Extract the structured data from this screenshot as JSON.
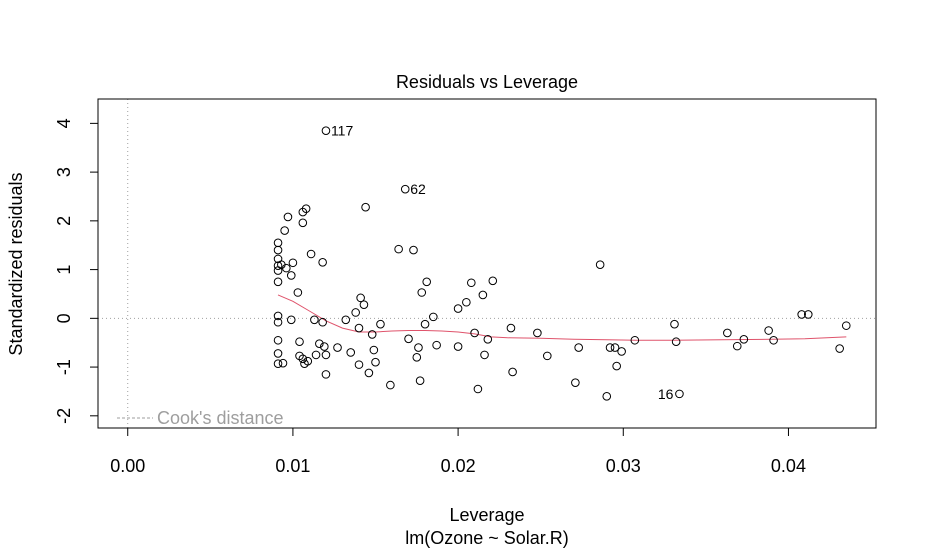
{
  "chart_data": {
    "type": "scatter",
    "title": "Residuals vs Leverage",
    "xlabel": "Leverage",
    "sub_xlabel": "lm(Ozone ~ Solar.R)",
    "ylabel": "Standardized residuals",
    "xlim": [
      -0.0018,
      0.0453
    ],
    "ylim": [
      -2.25,
      4.5
    ],
    "xticks": [
      0.0,
      0.01,
      0.02,
      0.03,
      0.04
    ],
    "xtick_labels": [
      "0.00",
      "0.01",
      "0.02",
      "0.03",
      "0.04"
    ],
    "yticks": [
      -2,
      -1,
      0,
      1,
      2,
      3,
      4
    ],
    "ytick_labels": [
      "-2",
      "-1",
      "0",
      "1",
      "2",
      "3",
      "4"
    ],
    "legend": {
      "label": "Cook's distance",
      "position": "bottom-left"
    },
    "reference_lines": {
      "h": 0,
      "v": 0
    },
    "points": [
      {
        "x": 0.0091,
        "y": 1.55
      },
      {
        "x": 0.0091,
        "y": 1.4
      },
      {
        "x": 0.0091,
        "y": 1.22
      },
      {
        "x": 0.0091,
        "y": 1.08
      },
      {
        "x": 0.0091,
        "y": 0.98
      },
      {
        "x": 0.0091,
        "y": 0.75
      },
      {
        "x": 0.0091,
        "y": 0.05
      },
      {
        "x": 0.0091,
        "y": -0.08
      },
      {
        "x": 0.0091,
        "y": -0.45
      },
      {
        "x": 0.0091,
        "y": -0.72
      },
      {
        "x": 0.0091,
        "y": -0.93
      },
      {
        "x": 0.0093,
        "y": 1.1
      },
      {
        "x": 0.0094,
        "y": -0.92
      },
      {
        "x": 0.0095,
        "y": 1.8
      },
      {
        "x": 0.0097,
        "y": 2.08
      },
      {
        "x": 0.0096,
        "y": 1.03
      },
      {
        "x": 0.0099,
        "y": 0.88
      },
      {
        "x": 0.01,
        "y": 1.14
      },
      {
        "x": 0.0099,
        "y": -0.03
      },
      {
        "x": 0.0103,
        "y": 0.53
      },
      {
        "x": 0.0104,
        "y": -0.77
      },
      {
        "x": 0.0104,
        "y": -0.48
      },
      {
        "x": 0.0106,
        "y": 2.18
      },
      {
        "x": 0.0106,
        "y": 1.96
      },
      {
        "x": 0.0108,
        "y": 2.25
      },
      {
        "x": 0.0106,
        "y": -0.83
      },
      {
        "x": 0.0107,
        "y": -0.93
      },
      {
        "x": 0.0109,
        "y": -0.88
      },
      {
        "x": 0.0111,
        "y": 1.32
      },
      {
        "x": 0.0113,
        "y": -0.03
      },
      {
        "x": 0.0114,
        "y": -0.75
      },
      {
        "x": 0.0116,
        "y": -0.52
      },
      {
        "x": 0.0118,
        "y": -0.08
      },
      {
        "x": 0.0118,
        "y": 1.15
      },
      {
        "x": 0.0119,
        "y": -0.58
      },
      {
        "x": 0.012,
        "y": -0.75
      },
      {
        "x": 0.012,
        "y": -1.15
      },
      {
        "x": 0.012,
        "y": 3.85,
        "label": "117"
      },
      {
        "x": 0.0127,
        "y": -0.6
      },
      {
        "x": 0.0132,
        "y": -0.03
      },
      {
        "x": 0.0135,
        "y": -0.7
      },
      {
        "x": 0.0138,
        "y": 0.12
      },
      {
        "x": 0.014,
        "y": -0.2
      },
      {
        "x": 0.014,
        "y": -0.95
      },
      {
        "x": 0.0141,
        "y": 0.42
      },
      {
        "x": 0.0143,
        "y": 0.28
      },
      {
        "x": 0.0144,
        "y": 2.28
      },
      {
        "x": 0.0146,
        "y": -1.12
      },
      {
        "x": 0.0148,
        "y": -0.33
      },
      {
        "x": 0.0149,
        "y": -0.65
      },
      {
        "x": 0.015,
        "y": -0.9
      },
      {
        "x": 0.0153,
        "y": -0.12
      },
      {
        "x": 0.0159,
        "y": -1.37
      },
      {
        "x": 0.0164,
        "y": 1.42
      },
      {
        "x": 0.0168,
        "y": 2.65,
        "label": "62"
      },
      {
        "x": 0.017,
        "y": -0.42
      },
      {
        "x": 0.0173,
        "y": 1.4
      },
      {
        "x": 0.0175,
        "y": -0.8
      },
      {
        "x": 0.0176,
        "y": -0.6
      },
      {
        "x": 0.0177,
        "y": -1.28
      },
      {
        "x": 0.0178,
        "y": 0.53
      },
      {
        "x": 0.018,
        "y": -0.12
      },
      {
        "x": 0.0181,
        "y": 0.75
      },
      {
        "x": 0.0185,
        "y": 0.03
      },
      {
        "x": 0.0187,
        "y": -0.55
      },
      {
        "x": 0.02,
        "y": -0.58
      },
      {
        "x": 0.02,
        "y": 0.2
      },
      {
        "x": 0.0205,
        "y": 0.33
      },
      {
        "x": 0.0208,
        "y": 0.73
      },
      {
        "x": 0.021,
        "y": -0.3
      },
      {
        "x": 0.0212,
        "y": -1.45
      },
      {
        "x": 0.0215,
        "y": 0.48
      },
      {
        "x": 0.0216,
        "y": -0.75
      },
      {
        "x": 0.0218,
        "y": -0.43
      },
      {
        "x": 0.0221,
        "y": 0.77
      },
      {
        "x": 0.0232,
        "y": -0.2
      },
      {
        "x": 0.0233,
        "y": -1.1
      },
      {
        "x": 0.0248,
        "y": -0.3
      },
      {
        "x": 0.0254,
        "y": -0.77
      },
      {
        "x": 0.0271,
        "y": -1.32
      },
      {
        "x": 0.0273,
        "y": -0.6
      },
      {
        "x": 0.0286,
        "y": 1.1
      },
      {
        "x": 0.029,
        "y": -1.6
      },
      {
        "x": 0.0292,
        "y": -0.6
      },
      {
        "x": 0.0295,
        "y": -0.6
      },
      {
        "x": 0.0296,
        "y": -0.98
      },
      {
        "x": 0.0299,
        "y": -0.68
      },
      {
        "x": 0.0307,
        "y": -0.45
      },
      {
        "x": 0.0331,
        "y": -0.12
      },
      {
        "x": 0.0332,
        "y": -0.48
      },
      {
        "x": 0.0334,
        "y": -1.55,
        "label": "16"
      },
      {
        "x": 0.0363,
        "y": -0.3
      },
      {
        "x": 0.0369,
        "y": -0.57
      },
      {
        "x": 0.0373,
        "y": -0.43
      },
      {
        "x": 0.0388,
        "y": -0.25
      },
      {
        "x": 0.0391,
        "y": -0.45
      },
      {
        "x": 0.0408,
        "y": 0.08
      },
      {
        "x": 0.0412,
        "y": 0.08
      },
      {
        "x": 0.0431,
        "y": -0.62
      },
      {
        "x": 0.0435,
        "y": -0.15
      }
    ],
    "smooth": [
      {
        "x": 0.0091,
        "y": 0.48
      },
      {
        "x": 0.01,
        "y": 0.35
      },
      {
        "x": 0.011,
        "y": 0.15
      },
      {
        "x": 0.012,
        "y": -0.05
      },
      {
        "x": 0.013,
        "y": -0.2
      },
      {
        "x": 0.014,
        "y": -0.28
      },
      {
        "x": 0.015,
        "y": -0.28
      },
      {
        "x": 0.016,
        "y": -0.26
      },
      {
        "x": 0.017,
        "y": -0.25
      },
      {
        "x": 0.018,
        "y": -0.25
      },
      {
        "x": 0.019,
        "y": -0.26
      },
      {
        "x": 0.02,
        "y": -0.28
      },
      {
        "x": 0.021,
        "y": -0.32
      },
      {
        "x": 0.022,
        "y": -0.38
      },
      {
        "x": 0.023,
        "y": -0.4
      },
      {
        "x": 0.025,
        "y": -0.41
      },
      {
        "x": 0.027,
        "y": -0.43
      },
      {
        "x": 0.029,
        "y": -0.44
      },
      {
        "x": 0.031,
        "y": -0.45
      },
      {
        "x": 0.033,
        "y": -0.45
      },
      {
        "x": 0.036,
        "y": -0.44
      },
      {
        "x": 0.039,
        "y": -0.43
      },
      {
        "x": 0.041,
        "y": -0.42
      },
      {
        "x": 0.0435,
        "y": -0.38
      }
    ],
    "colors": {
      "points": "#000000",
      "smooth": "#DF536B",
      "reference": "#a0a0a0",
      "legend": "#9e9e9e"
    }
  }
}
